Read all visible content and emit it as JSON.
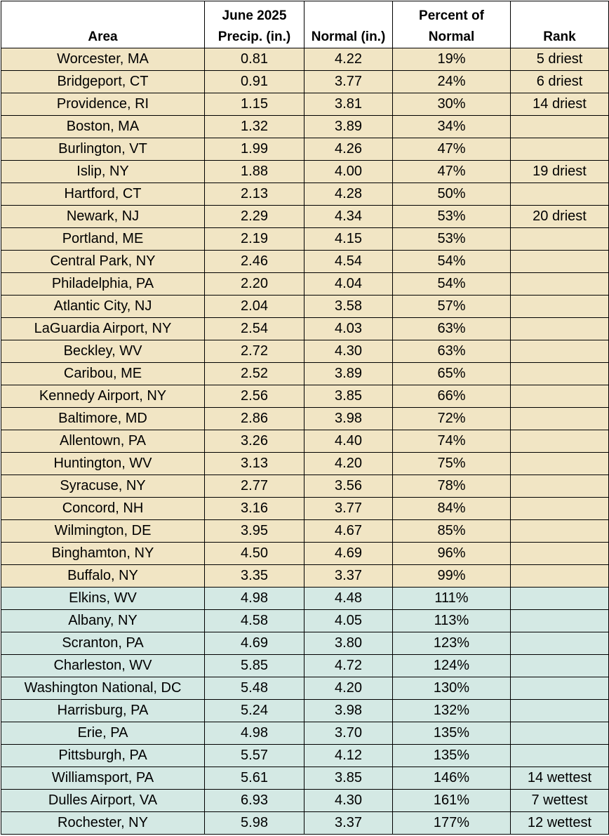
{
  "headers": {
    "area": "Area",
    "precip_line1": "June 2025",
    "precip_line2": "Precip. (in.)",
    "normal": "Normal (in.)",
    "pct_line1": "Percent of",
    "pct_line2": "Normal",
    "rank": "Rank"
  },
  "colors": {
    "below_normal_row": "#f1e5c4",
    "above_normal_row": "#d4e9e4"
  },
  "rows": [
    {
      "area": "Worcester, MA",
      "precip": "0.81",
      "normal": "4.22",
      "pct": "19%",
      "rank": "5 driest",
      "group": "dry"
    },
    {
      "area": "Bridgeport, CT",
      "precip": "0.91",
      "normal": "3.77",
      "pct": "24%",
      "rank": "6 driest",
      "group": "dry"
    },
    {
      "area": "Providence, RI",
      "precip": "1.15",
      "normal": "3.81",
      "pct": "30%",
      "rank": "14 driest",
      "group": "dry"
    },
    {
      "area": "Boston, MA",
      "precip": "1.32",
      "normal": "3.89",
      "pct": "34%",
      "rank": "",
      "group": "dry"
    },
    {
      "area": "Burlington, VT",
      "precip": "1.99",
      "normal": "4.26",
      "pct": "47%",
      "rank": "",
      "group": "dry"
    },
    {
      "area": "Islip, NY",
      "precip": "1.88",
      "normal": "4.00",
      "pct": "47%",
      "rank": "19 driest",
      "group": "dry"
    },
    {
      "area": "Hartford, CT",
      "precip": "2.13",
      "normal": "4.28",
      "pct": "50%",
      "rank": "",
      "group": "dry"
    },
    {
      "area": "Newark, NJ",
      "precip": "2.29",
      "normal": "4.34",
      "pct": "53%",
      "rank": "20 driest",
      "group": "dry"
    },
    {
      "area": "Portland, ME",
      "precip": "2.19",
      "normal": "4.15",
      "pct": "53%",
      "rank": "",
      "group": "dry"
    },
    {
      "area": "Central Park, NY",
      "precip": "2.46",
      "normal": "4.54",
      "pct": "54%",
      "rank": "",
      "group": "dry"
    },
    {
      "area": "Philadelphia, PA",
      "precip": "2.20",
      "normal": "4.04",
      "pct": "54%",
      "rank": "",
      "group": "dry"
    },
    {
      "area": "Atlantic City, NJ",
      "precip": "2.04",
      "normal": "3.58",
      "pct": "57%",
      "rank": "",
      "group": "dry"
    },
    {
      "area": "LaGuardia Airport, NY",
      "precip": "2.54",
      "normal": "4.03",
      "pct": "63%",
      "rank": "",
      "group": "dry"
    },
    {
      "area": "Beckley, WV",
      "precip": "2.72",
      "normal": "4.30",
      "pct": "63%",
      "rank": "",
      "group": "dry"
    },
    {
      "area": "Caribou, ME",
      "precip": "2.52",
      "normal": "3.89",
      "pct": "65%",
      "rank": "",
      "group": "dry"
    },
    {
      "area": "Kennedy Airport, NY",
      "precip": "2.56",
      "normal": "3.85",
      "pct": "66%",
      "rank": "",
      "group": "dry"
    },
    {
      "area": "Baltimore, MD",
      "precip": "2.86",
      "normal": "3.98",
      "pct": "72%",
      "rank": "",
      "group": "dry"
    },
    {
      "area": "Allentown, PA",
      "precip": "3.26",
      "normal": "4.40",
      "pct": "74%",
      "rank": "",
      "group": "dry"
    },
    {
      "area": "Huntington, WV",
      "precip": "3.13",
      "normal": "4.20",
      "pct": "75%",
      "rank": "",
      "group": "dry"
    },
    {
      "area": "Syracuse, NY",
      "precip": "2.77",
      "normal": "3.56",
      "pct": "78%",
      "rank": "",
      "group": "dry"
    },
    {
      "area": "Concord, NH",
      "precip": "3.16",
      "normal": "3.77",
      "pct": "84%",
      "rank": "",
      "group": "dry"
    },
    {
      "area": "Wilmington, DE",
      "precip": "3.95",
      "normal": "4.67",
      "pct": "85%",
      "rank": "",
      "group": "dry"
    },
    {
      "area": "Binghamton, NY",
      "precip": "4.50",
      "normal": "4.69",
      "pct": "96%",
      "rank": "",
      "group": "dry"
    },
    {
      "area": "Buffalo, NY",
      "precip": "3.35",
      "normal": "3.37",
      "pct": "99%",
      "rank": "",
      "group": "dry"
    },
    {
      "area": "Elkins, WV",
      "precip": "4.98",
      "normal": "4.48",
      "pct": "111%",
      "rank": "",
      "group": "wet"
    },
    {
      "area": "Albany, NY",
      "precip": "4.58",
      "normal": "4.05",
      "pct": "113%",
      "rank": "",
      "group": "wet"
    },
    {
      "area": "Scranton, PA",
      "precip": "4.69",
      "normal": "3.80",
      "pct": "123%",
      "rank": "",
      "group": "wet"
    },
    {
      "area": "Charleston, WV",
      "precip": "5.85",
      "normal": "4.72",
      "pct": "124%",
      "rank": "",
      "group": "wet"
    },
    {
      "area": "Washington National, DC",
      "precip": "5.48",
      "normal": "4.20",
      "pct": "130%",
      "rank": "",
      "group": "wet"
    },
    {
      "area": "Harrisburg, PA",
      "precip": "5.24",
      "normal": "3.98",
      "pct": "132%",
      "rank": "",
      "group": "wet"
    },
    {
      "area": "Erie, PA",
      "precip": "4.98",
      "normal": "3.70",
      "pct": "135%",
      "rank": "",
      "group": "wet"
    },
    {
      "area": "Pittsburgh, PA",
      "precip": "5.57",
      "normal": "4.12",
      "pct": "135%",
      "rank": "",
      "group": "wet"
    },
    {
      "area": "Williamsport, PA",
      "precip": "5.61",
      "normal": "3.85",
      "pct": "146%",
      "rank": "14 wettest",
      "group": "wet"
    },
    {
      "area": "Dulles Airport, VA",
      "precip": "6.93",
      "normal": "4.30",
      "pct": "161%",
      "rank": "7 wettest",
      "group": "wet"
    },
    {
      "area": "Rochester, NY",
      "precip": "5.98",
      "normal": "3.37",
      "pct": "177%",
      "rank": "12 wettest",
      "group": "wet"
    }
  ]
}
